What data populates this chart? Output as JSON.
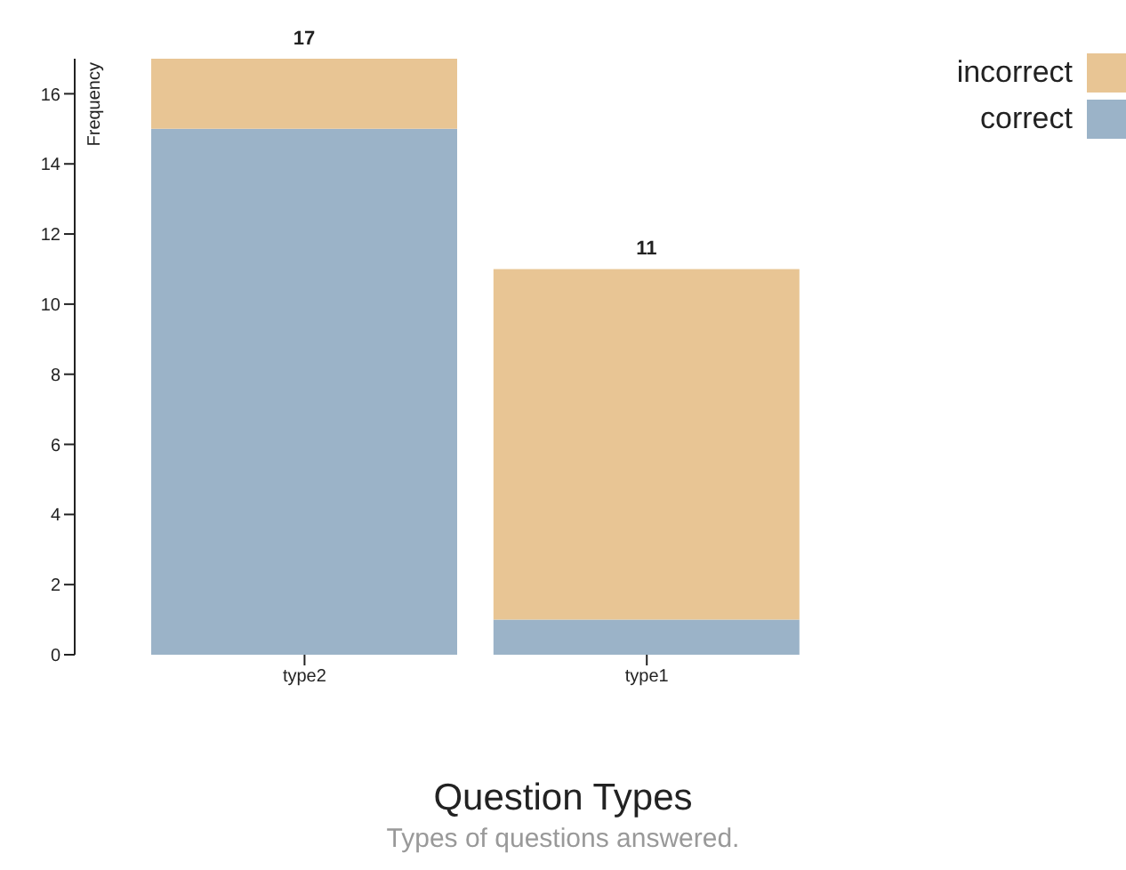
{
  "chart_data": {
    "type": "bar",
    "title": "Question Types",
    "subtitle": "Types of questions answered.",
    "ylabel": "Frequency",
    "categories": [
      "type2",
      "type1"
    ],
    "stacked": true,
    "series": [
      {
        "name": "correct",
        "color": "#9bb3c8",
        "values": [
          15,
          1
        ]
      },
      {
        "name": "incorrect",
        "color": "#e8c594",
        "values": [
          2,
          10
        ]
      }
    ],
    "totals": [
      "17",
      "11"
    ],
    "ylim": [
      0,
      17
    ],
    "yticks": [
      0,
      2,
      4,
      6,
      8,
      10,
      12,
      14,
      16
    ],
    "grid": false,
    "legend": "top right"
  }
}
